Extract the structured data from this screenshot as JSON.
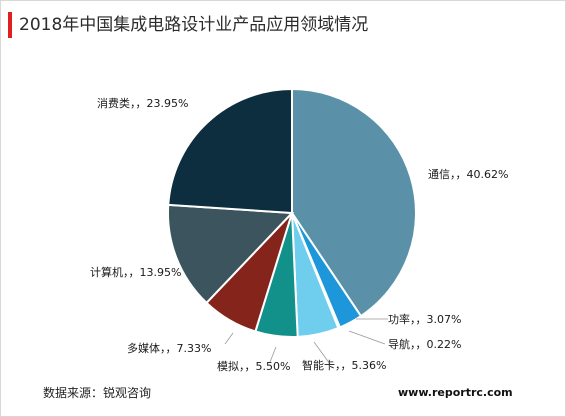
{
  "title_bar_color": "#e02020",
  "chart_data": {
    "type": "pie",
    "title": "2018年中国集成电路设计业产品应用领域情况",
    "start_angle_deg": 0,
    "direction": "clockwise",
    "slices": [
      {
        "label": "通信，，40.62%",
        "value": 40.62,
        "color": "#5b91a8"
      },
      {
        "label": "功率，，3.07%",
        "value": 3.07,
        "color": "#1d97d9"
      },
      {
        "label": "导航，，0.22%",
        "value": 0.22,
        "color": "#7fc4e8"
      },
      {
        "label": "智能卡，，5.36%",
        "value": 5.36,
        "color": "#6fcdee"
      },
      {
        "label": "模拟，，5.50%",
        "value": 5.5,
        "color": "#12908a"
      },
      {
        "label": "多媒体，，7.33%",
        "value": 7.33,
        "color": "#85241a"
      },
      {
        "label": "计算机，，13.95%",
        "value": 13.95,
        "color": "#3b545e"
      },
      {
        "label": "消费类，，23.95%",
        "value": 23.95,
        "color": "#0c2e3f"
      }
    ]
  },
  "footer": {
    "source": "数据来源：锐观咨询",
    "watermark": "www.reportrc.com"
  }
}
